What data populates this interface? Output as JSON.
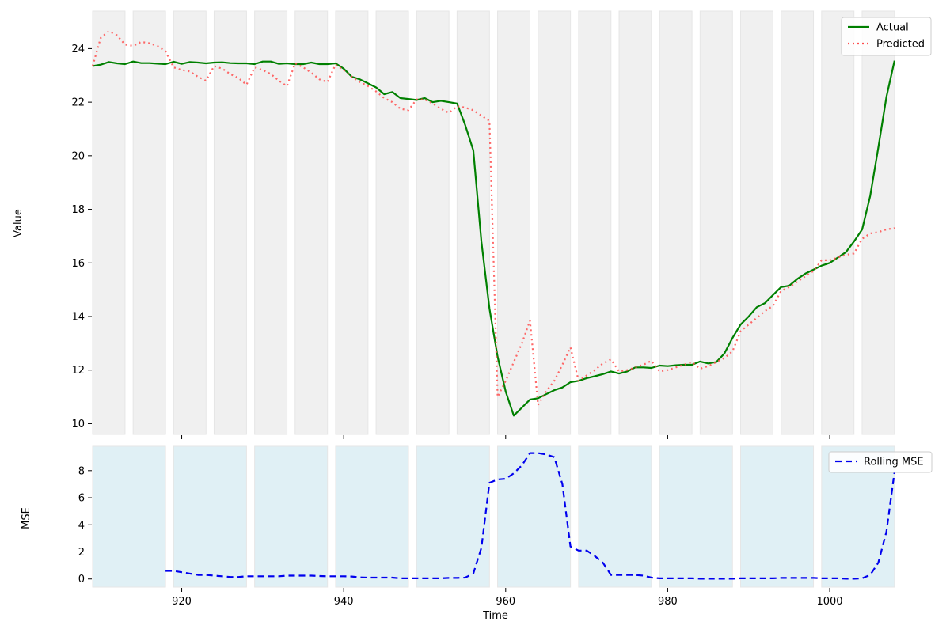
{
  "chart_data": [
    {
      "type": "line",
      "panel": "top",
      "title": "",
      "xlabel": "",
      "ylabel": "Value",
      "xlim": [
        909,
        1008.5
      ],
      "ylim": [
        9.6,
        25.4
      ],
      "x_ticks": [
        920,
        940,
        960,
        980,
        1000
      ],
      "y_ticks": [
        10,
        12,
        14,
        16,
        18,
        20,
        22,
        24
      ],
      "grid": false,
      "legend_position": "top-right",
      "shaded_bands": [
        [
          909,
          913
        ],
        [
          914,
          918
        ],
        [
          919,
          923
        ],
        [
          924,
          928
        ],
        [
          929,
          933
        ],
        [
          934,
          938
        ],
        [
          939,
          943
        ],
        [
          944,
          948
        ],
        [
          949,
          953
        ],
        [
          954,
          958
        ],
        [
          959,
          963
        ],
        [
          964,
          968
        ],
        [
          969,
          973
        ],
        [
          974,
          978
        ],
        [
          979,
          983
        ],
        [
          984,
          988
        ],
        [
          989,
          993
        ],
        [
          994,
          998
        ],
        [
          999,
          1003
        ],
        [
          1004,
          1008
        ]
      ],
      "band_color": "#f0f0f0",
      "series": [
        {
          "name": "Actual",
          "color": "#008000",
          "style": "solid",
          "x_start": 909,
          "values": [
            23.35,
            23.4,
            23.5,
            23.45,
            23.42,
            23.52,
            23.46,
            23.46,
            23.44,
            23.42,
            23.51,
            23.43,
            23.5,
            23.48,
            23.45,
            23.48,
            23.49,
            23.46,
            23.45,
            23.45,
            23.42,
            23.52,
            23.52,
            23.43,
            23.45,
            23.42,
            23.42,
            23.48,
            23.42,
            23.42,
            23.45,
            23.25,
            22.95,
            22.85,
            22.7,
            22.55,
            22.3,
            22.38,
            22.15,
            22.12,
            22.08,
            22.15,
            22.0,
            22.05,
            22.0,
            21.95,
            21.15,
            20.2,
            16.8,
            14.3,
            12.5,
            11.2,
            10.3,
            10.6,
            10.9,
            10.95,
            11.1,
            11.25,
            11.35,
            11.55,
            11.6,
            11.7,
            11.77,
            11.85,
            11.95,
            11.87,
            11.95,
            12.1,
            12.1,
            12.08,
            12.17,
            12.15,
            12.18,
            12.2,
            12.2,
            12.32,
            12.25,
            12.3,
            12.62,
            13.2,
            13.7,
            14.0,
            14.35,
            14.5,
            14.8,
            15.1,
            15.15,
            15.4,
            15.6,
            15.75,
            15.9,
            16.0,
            16.2,
            16.4,
            16.8,
            17.25,
            18.5,
            20.3,
            22.2,
            23.55
          ]
        },
        {
          "name": "Predicted",
          "color": "#ff4d4d",
          "style": "dotted",
          "x_start": 909,
          "values": [
            23.35,
            24.4,
            24.65,
            24.5,
            24.15,
            24.1,
            24.25,
            24.2,
            24.1,
            23.9,
            23.3,
            23.2,
            23.15,
            22.95,
            22.8,
            23.35,
            23.25,
            23.05,
            22.9,
            22.65,
            23.3,
            23.2,
            23.05,
            22.8,
            22.6,
            23.45,
            23.3,
            23.1,
            22.85,
            22.75,
            23.4,
            23.2,
            22.95,
            22.75,
            22.6,
            22.4,
            22.15,
            22.0,
            21.75,
            21.7,
            22.1,
            22.1,
            21.95,
            21.75,
            21.6,
            21.85,
            21.8,
            21.7,
            21.5,
            21.3,
            11.0,
            11.6,
            12.3,
            13.0,
            13.85,
            10.7,
            11.2,
            11.6,
            12.2,
            12.85,
            11.6,
            11.8,
            12.0,
            12.25,
            12.4,
            11.95,
            12.0,
            12.1,
            12.2,
            12.35,
            11.95,
            12.0,
            12.1,
            12.2,
            12.3,
            12.05,
            12.15,
            12.3,
            12.45,
            12.7,
            13.45,
            13.7,
            13.95,
            14.2,
            14.4,
            14.95,
            15.1,
            15.3,
            15.5,
            15.7,
            16.1,
            16.1,
            16.2,
            16.3,
            16.35,
            16.9,
            17.1,
            17.15,
            17.25,
            17.3
          ]
        }
      ]
    },
    {
      "type": "line",
      "panel": "bottom",
      "title": "",
      "xlabel": "Time",
      "ylabel": "MSE",
      "xlim": [
        909,
        1008.5
      ],
      "ylim": [
        -0.6,
        9.8
      ],
      "x_ticks": [
        920,
        940,
        960,
        980,
        1000
      ],
      "y_ticks": [
        0,
        2,
        4,
        6,
        8
      ],
      "grid": false,
      "legend_position": "top-right",
      "shaded_bands": [
        [
          909,
          918
        ],
        [
          919,
          928
        ],
        [
          929,
          938
        ],
        [
          939,
          948
        ],
        [
          949,
          958
        ],
        [
          959,
          968
        ],
        [
          969,
          978
        ],
        [
          979,
          988
        ],
        [
          989,
          998
        ],
        [
          999,
          1008
        ]
      ],
      "band_color": "#e0f0f5",
      "series": [
        {
          "name": "Rolling MSE",
          "color": "#0000ee",
          "style": "dashed",
          "x": [
            918,
            919,
            920,
            921,
            922,
            923,
            924,
            925,
            926,
            927,
            928,
            929,
            930,
            931,
            932,
            933,
            934,
            935,
            936,
            937,
            938,
            939,
            940,
            941,
            942,
            943,
            944,
            945,
            946,
            947,
            948,
            949,
            950,
            951,
            952,
            953,
            954,
            955,
            956,
            957,
            958,
            959,
            960,
            961,
            962,
            963,
            964,
            965,
            966,
            967,
            968,
            969,
            970,
            971,
            972,
            973,
            974,
            975,
            976,
            977,
            978,
            979,
            980,
            981,
            982,
            983,
            984,
            985,
            986,
            987,
            988,
            989,
            990,
            991,
            992,
            993,
            994,
            995,
            996,
            997,
            998,
            999,
            1000,
            1001,
            1002,
            1003,
            1004,
            1005,
            1006,
            1007,
            1008
          ],
          "values": [
            0.6,
            0.6,
            0.5,
            0.4,
            0.3,
            0.3,
            0.25,
            0.2,
            0.15,
            0.15,
            0.2,
            0.2,
            0.2,
            0.2,
            0.2,
            0.25,
            0.25,
            0.25,
            0.25,
            0.22,
            0.2,
            0.2,
            0.2,
            0.18,
            0.12,
            0.1,
            0.1,
            0.1,
            0.1,
            0.05,
            0.05,
            0.05,
            0.05,
            0.05,
            0.05,
            0.08,
            0.08,
            0.1,
            0.4,
            2.3,
            7.1,
            7.35,
            7.4,
            7.8,
            8.4,
            9.3,
            9.3,
            9.2,
            9.0,
            7.0,
            2.4,
            2.1,
            2.1,
            1.7,
            1.2,
            0.3,
            0.3,
            0.3,
            0.3,
            0.25,
            0.1,
            0.05,
            0.05,
            0.05,
            0.05,
            0.05,
            0.02,
            0.02,
            0.02,
            0.02,
            0.02,
            0.05,
            0.05,
            0.05,
            0.05,
            0.05,
            0.08,
            0.08,
            0.08,
            0.08,
            0.08,
            0.05,
            0.05,
            0.05,
            0.02,
            0.02,
            0.05,
            0.3,
            1.2,
            3.5,
            7.9
          ]
        }
      ]
    }
  ]
}
